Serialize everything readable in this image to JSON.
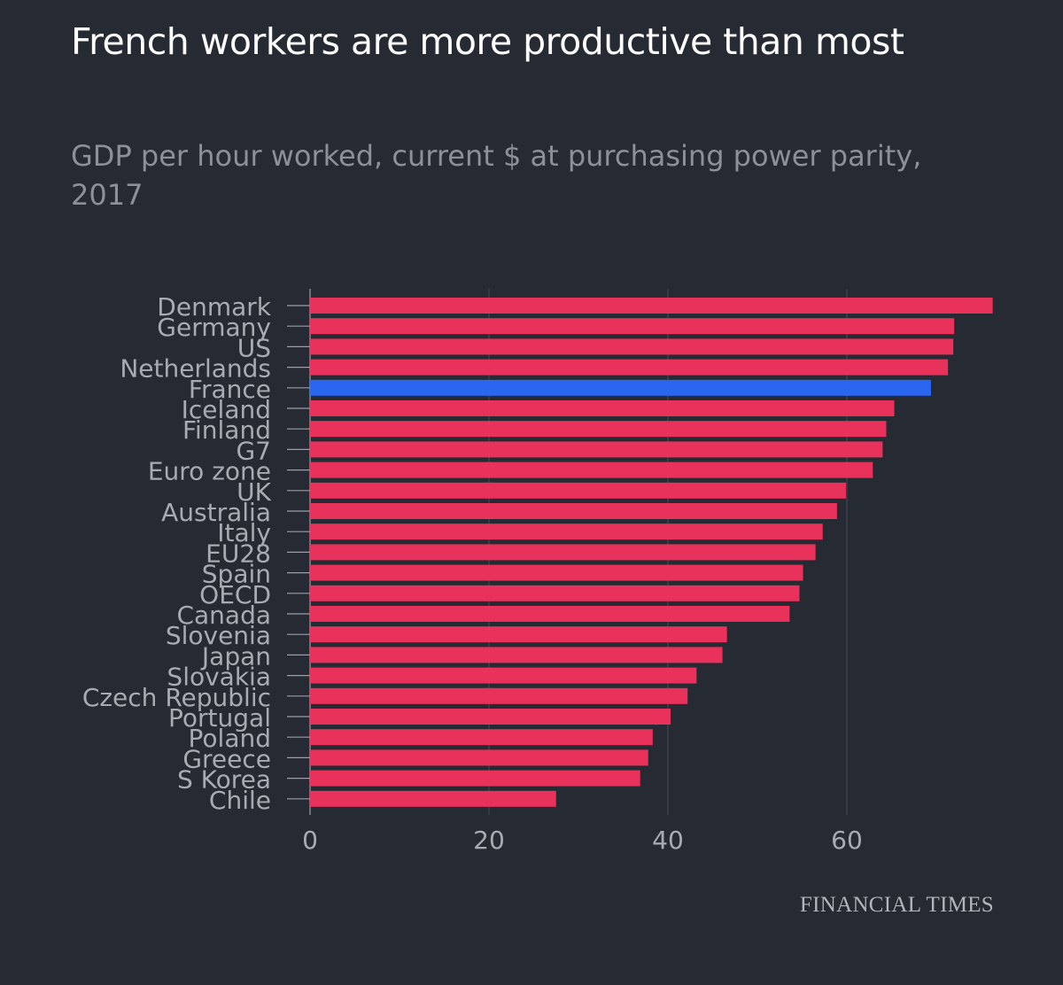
{
  "title": "French workers are more productive than most",
  "subtitle": "GDP per hour worked, current $ at purchasing power parity, 2017",
  "source": "FINANCIAL TIMES",
  "colors": {
    "background": "#262a33",
    "bar": "#e8315b",
    "highlight": "#2b66f0",
    "grid": "#464a53",
    "axis": "#9b9ea5",
    "label": "#a9abb2"
  },
  "chart_data": {
    "type": "bar",
    "orientation": "horizontal",
    "categories": [
      "Denmark",
      "Germany",
      "US",
      "Netherlands",
      "France",
      "Iceland",
      "Finland",
      "G7",
      "Euro zone",
      "UK",
      "Australia",
      "Italy",
      "EU28",
      "Spain",
      "OECD",
      "Canada",
      "Slovenia",
      "Japan",
      "Slovakia",
      "Czech Republic",
      "Portugal",
      "Poland",
      "Greece",
      "S Korea",
      "Chile"
    ],
    "values": [
      76.3,
      72,
      71.9,
      71.3,
      69.4,
      65.3,
      64.4,
      64,
      62.9,
      59.9,
      58.9,
      57.3,
      56.5,
      55.1,
      54.7,
      53.6,
      46.6,
      46.1,
      43.2,
      42.2,
      40.3,
      38.3,
      37.8,
      36.9,
      27.5
    ],
    "highlight": "France",
    "xlim": [
      0,
      78
    ],
    "xticks": [
      0,
      20,
      40,
      60
    ],
    "grid": true
  }
}
